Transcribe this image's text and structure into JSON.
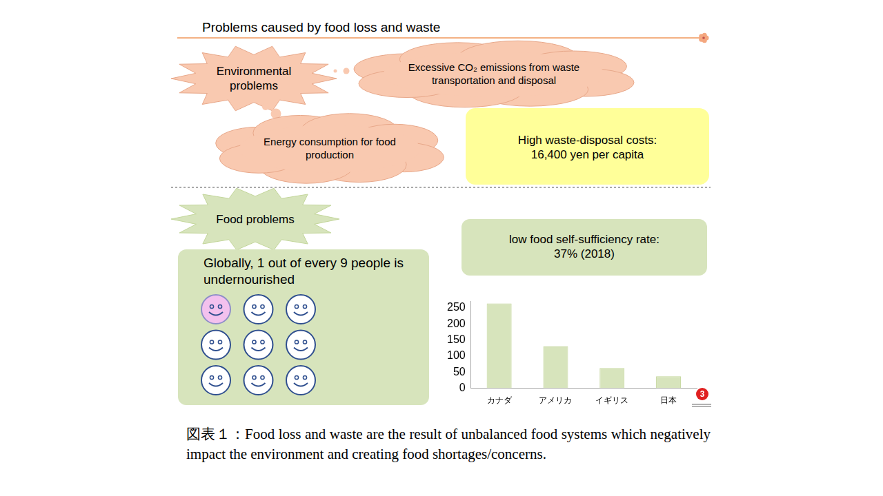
{
  "title": "Problems caused by food loss and waste",
  "environmental": {
    "label": "Environmental problems",
    "items": [
      "Excessive CO₂ emissions from waste transportation and disposal",
      "Energy consumption for food production"
    ]
  },
  "costs": {
    "label": "High waste-disposal costs:",
    "text": "16,400 yen per capita"
  },
  "food": {
    "label": "Food problems",
    "undernourished": {
      "text": "Globally, 1 out of every 9 people is undernourished",
      "icons": 9,
      "highlighted": 1
    },
    "self_sufficiency": {
      "label": "low food self-sufficiency rate:",
      "text": "37% (2018)"
    }
  },
  "chart_data": {
    "type": "bar",
    "categories": [
      "カナダ",
      "アメリカ",
      "イギリス",
      "日本"
    ],
    "values": [
      264,
      130,
      63,
      37
    ],
    "color": "#d7e4bc",
    "ylim": [
      0,
      270
    ],
    "yticks": [
      0,
      50,
      100,
      150,
      200,
      250
    ],
    "grid": false
  },
  "badge": "3",
  "caption": "図表１：Food loss and waste are the result of unbalanced food systems which negatively impact the environment and creating food shortages/concerns."
}
